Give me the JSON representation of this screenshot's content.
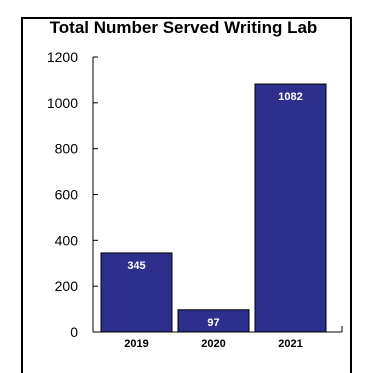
{
  "chart_data": {
    "type": "bar",
    "title": "Total Number Served Writing Lab",
    "categories": [
      "2019",
      "2020",
      "2021"
    ],
    "values": [
      345,
      97,
      1082
    ],
    "data_labels": [
      "345",
      "97",
      "1082"
    ],
    "y_ticks": [
      "0",
      "200",
      "400",
      "600",
      "800",
      "1000",
      "1200"
    ],
    "ylim": [
      0,
      1200
    ],
    "xlabel": "",
    "ylabel": "",
    "grid": false,
    "bar_color": "#2e2e8c"
  }
}
